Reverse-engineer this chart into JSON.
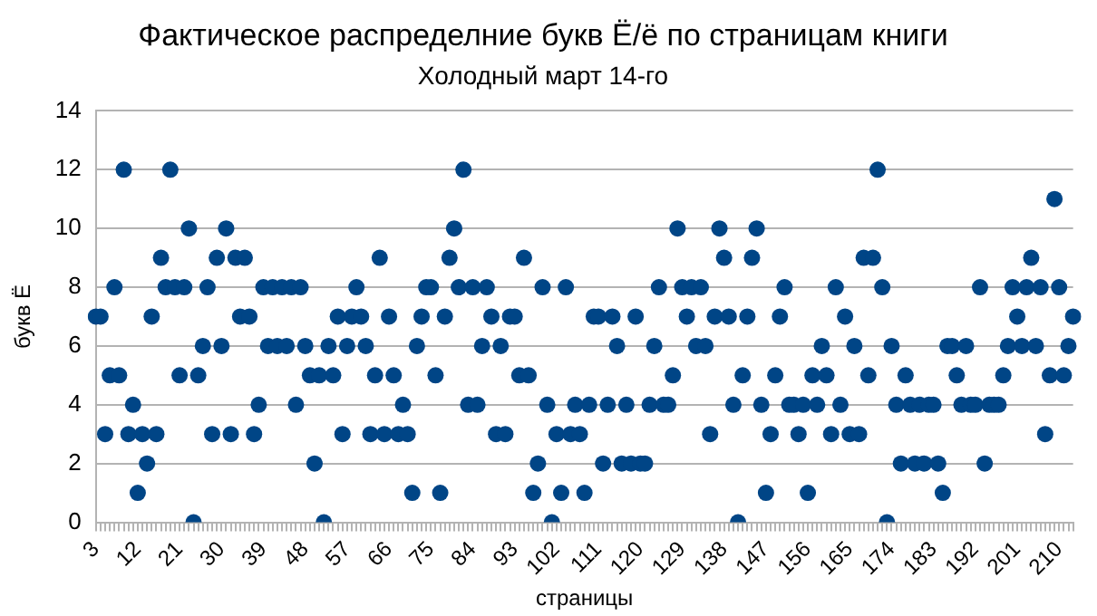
{
  "chart_data": {
    "type": "scatter",
    "title": "Фактическое распределние букв Ё/ё по страницам книги",
    "subtitle": "Холодный март 14-го",
    "xlabel": "страницы",
    "ylabel": "букв Ё",
    "categories": [
      "3",
      null,
      null,
      null,
      null,
      null,
      null,
      null,
      null,
      "12",
      null,
      null,
      null,
      null,
      null,
      null,
      null,
      null,
      "21",
      null,
      null,
      null,
      null,
      null,
      null,
      null,
      null,
      "30",
      null,
      null,
      null,
      null,
      null,
      null,
      null,
      null,
      "39",
      null,
      null,
      null,
      null,
      null,
      null,
      null,
      null,
      "48",
      null,
      null,
      null,
      null,
      null,
      null,
      null,
      null,
      "57",
      null,
      null,
      null,
      null,
      null,
      null,
      null,
      null,
      "66",
      null,
      null,
      null,
      null,
      null,
      null,
      null,
      null,
      "75",
      null,
      null,
      null,
      null,
      null,
      null,
      null,
      null,
      "84",
      null,
      null,
      null,
      null,
      null,
      null,
      null,
      null,
      "93",
      null,
      null,
      null,
      null,
      null,
      null,
      null,
      null,
      "102",
      null,
      null,
      null,
      null,
      null,
      null,
      null,
      null,
      "111",
      null,
      null,
      null,
      null,
      null,
      null,
      null,
      null,
      "120",
      null,
      null,
      null,
      null,
      null,
      null,
      null,
      null,
      "129",
      null,
      null,
      null,
      null,
      null,
      null,
      null,
      null,
      "138",
      null,
      null,
      null,
      null,
      null,
      null,
      null,
      null,
      "147",
      null,
      null,
      null,
      null,
      null,
      null,
      null,
      null,
      "156",
      null,
      null,
      null,
      null,
      null,
      null,
      null,
      null,
      "165",
      null,
      null,
      null,
      null,
      null,
      null,
      null,
      null,
      "174",
      null,
      null,
      null,
      null,
      null,
      null,
      null,
      null,
      "183",
      null,
      null,
      null,
      null,
      null,
      null,
      null,
      null,
      "192",
      null,
      null,
      null,
      null,
      null,
      null,
      null,
      null,
      "201",
      null,
      null,
      null,
      null,
      null,
      null,
      null,
      null,
      "210",
      null,
      null,
      null
    ],
    "values": [
      7,
      7,
      3,
      5,
      8,
      5,
      12,
      3,
      4,
      1,
      3,
      2,
      7,
      3,
      9,
      8,
      12,
      8,
      5,
      8,
      10,
      0,
      5,
      6,
      8,
      3,
      9,
      6,
      10,
      3,
      9,
      7,
      9,
      7,
      3,
      4,
      8,
      6,
      8,
      6,
      8,
      6,
      8,
      4,
      8,
      6,
      5,
      2,
      5,
      0,
      6,
      5,
      7,
      3,
      6,
      7,
      8,
      7,
      6,
      3,
      5,
      9,
      3,
      7,
      5,
      3,
      4,
      3,
      1,
      6,
      7,
      8,
      8,
      5,
      1,
      7,
      9,
      10,
      8,
      12,
      4,
      8,
      4,
      6,
      8,
      7,
      3,
      6,
      3,
      7,
      7,
      5,
      9,
      5,
      1,
      2,
      8,
      4,
      0,
      3,
      1,
      8,
      3,
      4,
      3,
      1,
      4,
      7,
      7,
      2,
      4,
      7,
      6,
      2,
      4,
      2,
      7,
      2,
      2,
      4,
      6,
      8,
      4,
      4,
      5,
      10,
      8,
      7,
      8,
      6,
      8,
      6,
      3,
      7,
      10,
      9,
      7,
      4,
      0,
      5,
      7,
      9,
      10,
      4,
      1,
      3,
      5,
      7,
      8,
      4,
      4,
      3,
      4,
      1,
      5,
      4,
      6,
      5,
      3,
      8,
      4,
      7,
      3,
      6,
      3,
      9,
      5,
      9,
      12,
      8,
      0,
      6,
      4,
      2,
      5,
      4,
      2,
      4,
      2,
      4,
      4,
      2,
      1,
      6,
      6,
      5,
      4,
      6,
      4,
      4,
      8,
      2,
      4,
      4,
      4,
      5,
      6,
      8,
      7,
      6,
      8,
      9,
      6,
      8,
      3,
      5,
      11,
      8,
      5,
      6,
      7
    ],
    "color": "#004586",
    "marker": "circle",
    "ylim": [
      0,
      14
    ],
    "yticks": [
      0,
      2,
      4,
      6,
      8,
      10,
      12,
      14
    ],
    "grid": "y",
    "legend": false
  }
}
